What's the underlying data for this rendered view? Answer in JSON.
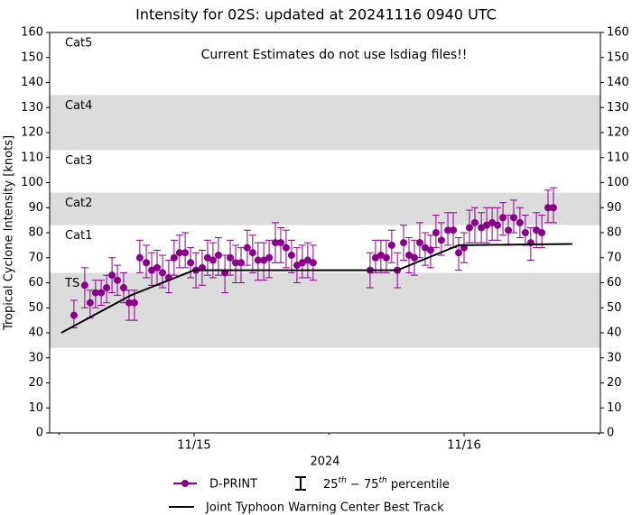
{
  "chart_data": {
    "type": "errorbar",
    "title": "Intensity for 02S: updated at 20241116 0940 UTC",
    "annotation": "Current Estimates do not use lsdiag files!!",
    "xlabel": "2024",
    "ylabel": "Tropical Cyclone Intensity [knots]",
    "xlim": [
      14.465,
      16.505
    ],
    "xticks": [
      {
        "value": 15,
        "label": "11/15"
      },
      {
        "value": 16,
        "label": "11/16"
      }
    ],
    "xminorticks": [
      14.5,
      15.5,
      16.5
    ],
    "ylim": [
      0,
      160
    ],
    "yticks": [
      0,
      10,
      20,
      30,
      40,
      50,
      60,
      70,
      80,
      90,
      100,
      110,
      120,
      130,
      140,
      150,
      160
    ],
    "y2lim": [
      0,
      160
    ],
    "y2ticks": [
      0,
      10,
      20,
      30,
      40,
      50,
      60,
      70,
      80,
      90,
      100,
      110,
      120,
      130,
      140,
      150,
      160
    ],
    "intensity_bands": [
      {
        "label": "TS",
        "from": 34,
        "to": 64,
        "shaded": true
      },
      {
        "label": "Cat1",
        "from": 64,
        "to": 83,
        "shaded": false
      },
      {
        "label": "Cat2",
        "from": 83,
        "to": 96,
        "shaded": true
      },
      {
        "label": "Cat3",
        "from": 96,
        "to": 113,
        "shaded": false
      },
      {
        "label": "Cat4",
        "from": 113,
        "to": 135,
        "shaded": true
      },
      {
        "label": "Cat5",
        "from": 135,
        "to": 160,
        "shaded": false
      }
    ],
    "band_color": "#dcdcdc",
    "error_bar_legend": [
      "25",
      "th",
      " − 75",
      "th",
      " percentile"
    ],
    "series": [
      {
        "name": "D-PRINT",
        "type": "errorbar",
        "color": "#8b008b",
        "x": [
          14.555,
          14.595,
          14.615,
          14.635,
          14.656,
          14.676,
          14.696,
          14.716,
          14.739,
          14.759,
          14.779,
          14.799,
          14.823,
          14.843,
          14.863,
          14.883,
          14.906,
          14.926,
          14.946,
          14.967,
          14.987,
          15.007,
          15.03,
          15.05,
          15.07,
          15.09,
          15.114,
          15.134,
          15.154,
          15.174,
          15.197,
          15.217,
          15.237,
          15.258,
          15.278,
          15.301,
          15.321,
          15.341,
          15.361,
          15.381,
          15.401,
          15.421,
          15.441,
          15.652,
          15.672,
          15.692,
          15.712,
          15.732,
          15.753,
          15.776,
          15.796,
          15.816,
          15.836,
          15.856,
          15.876,
          15.896,
          15.916,
          15.94,
          15.96,
          15.98,
          16.0,
          16.02,
          16.04,
          16.064,
          16.084,
          16.104,
          16.124,
          16.144,
          16.164,
          16.184,
          16.207,
          16.227,
          16.247,
          16.268,
          16.288,
          16.311,
          16.331
        ],
        "values": [
          47,
          59,
          52,
          56,
          56,
          58,
          63,
          61,
          58,
          52,
          52,
          70,
          68,
          65,
          66,
          64,
          62,
          70,
          72,
          72,
          68,
          65,
          66,
          70,
          69,
          71,
          64,
          70,
          68,
          68,
          74,
          72,
          69,
          69,
          70,
          76,
          76,
          74,
          71,
          67,
          68,
          69,
          68,
          65,
          70,
          71,
          70,
          75,
          65,
          76,
          71,
          70,
          76,
          74,
          73,
          80,
          77,
          81,
          81,
          72,
          74,
          82,
          84,
          82,
          83,
          84,
          83,
          86,
          81,
          86,
          84,
          80,
          76,
          81,
          80,
          90,
          90
        ],
        "p25": [
          42,
          50,
          46,
          50,
          51,
          52,
          56,
          55,
          52,
          45,
          45,
          64,
          62,
          59,
          59,
          58,
          56,
          63,
          66,
          66,
          62,
          58,
          59,
          63,
          62,
          63,
          56,
          63,
          60,
          60,
          67,
          64,
          61,
          61,
          62,
          68,
          68,
          66,
          64,
          60,
          62,
          62,
          61,
          58,
          64,
          64,
          64,
          68,
          58,
          69,
          64,
          63,
          70,
          67,
          66,
          74,
          71,
          75,
          74,
          65,
          68,
          76,
          76,
          76,
          76,
          77,
          77,
          79,
          75,
          80,
          78,
          75,
          69,
          74,
          74,
          84,
          84
        ],
        "p75": [
          53,
          66,
          57,
          61,
          61,
          63,
          70,
          67,
          64,
          57,
          57,
          77,
          75,
          72,
          73,
          71,
          69,
          77,
          79,
          80,
          74,
          72,
          73,
          77,
          76,
          78,
          71,
          77,
          75,
          74,
          81,
          79,
          76,
          76,
          77,
          84,
          82,
          81,
          77,
          74,
          75,
          76,
          75,
          72,
          77,
          77,
          77,
          81,
          72,
          83,
          78,
          77,
          84,
          80,
          79,
          87,
          84,
          88,
          88,
          78,
          80,
          89,
          90,
          88,
          90,
          90,
          90,
          92,
          87,
          93,
          90,
          87,
          82,
          88,
          87,
          97,
          98
        ]
      },
      {
        "name": "Joint Typhoon Warning Center Best Track",
        "type": "line",
        "color": "#000000",
        "x": [
          14.508,
          14.766,
          15.0,
          15.753,
          15.98,
          16.401
        ],
        "values": [
          40,
          55,
          65,
          65,
          75,
          75.5
        ]
      }
    ]
  }
}
